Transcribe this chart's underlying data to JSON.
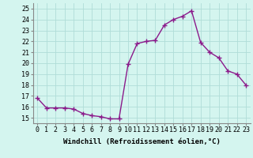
{
  "x": [
    0,
    1,
    2,
    3,
    4,
    5,
    6,
    7,
    8,
    9,
    10,
    11,
    12,
    13,
    14,
    15,
    16,
    17,
    18,
    19,
    20,
    21,
    22,
    23
  ],
  "y": [
    16.8,
    15.9,
    15.9,
    15.9,
    15.8,
    15.4,
    15.2,
    15.1,
    14.9,
    14.9,
    19.9,
    21.8,
    22.0,
    22.1,
    23.5,
    24.0,
    24.3,
    24.8,
    21.9,
    21.0,
    20.5,
    19.3,
    19.0,
    18.0
  ],
  "line_color": "#8b1a8b",
  "marker": "+",
  "markersize": 4,
  "linewidth": 1,
  "background_color": "#d4f5ef",
  "grid_color": "#b0ddd8",
  "xlabel": "Windchill (Refroidissement éolien,°C)",
  "xlabel_fontsize": 6.5,
  "ylabel_ticks": [
    15,
    16,
    17,
    18,
    19,
    20,
    21,
    22,
    23,
    24,
    25
  ],
  "xlim": [
    -0.5,
    23.5
  ],
  "ylim": [
    14.5,
    25.5
  ],
  "xtick_labels": [
    "0",
    "1",
    "2",
    "3",
    "4",
    "5",
    "6",
    "7",
    "8",
    "9",
    "10",
    "11",
    "12",
    "13",
    "14",
    "15",
    "16",
    "17",
    "18",
    "19",
    "20",
    "21",
    "22",
    "23"
  ],
  "tick_fontsize": 6.0
}
